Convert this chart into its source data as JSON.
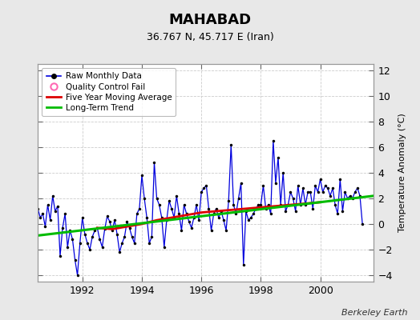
{
  "title": "MAHABAD",
  "subtitle": "36.767 N, 45.717 E (Iran)",
  "credit": "Berkeley Earth",
  "ylabel": "Temperature Anomaly (°C)",
  "xlim": [
    1990.5,
    2001.8
  ],
  "ylim": [
    -4.5,
    12.5
  ],
  "yticks": [
    -4,
    -2,
    0,
    2,
    4,
    6,
    8,
    10,
    12
  ],
  "xticks": [
    1992,
    1994,
    1996,
    1998,
    2000
  ],
  "fig_bg_color": "#e8e8e8",
  "plot_bg_color": "#ffffff",
  "raw_color": "#0000dd",
  "moving_avg_color": "#dd0000",
  "trend_color": "#00bb00",
  "qc_fail_color": "#ff69b4",
  "raw_data_x": [
    1990.5,
    1990.583,
    1990.667,
    1990.75,
    1990.833,
    1990.917,
    1991.0,
    1991.083,
    1991.167,
    1991.25,
    1991.333,
    1991.417,
    1991.5,
    1991.583,
    1991.667,
    1991.75,
    1991.833,
    1991.917,
    1992.0,
    1992.083,
    1992.167,
    1992.25,
    1992.333,
    1992.417,
    1992.5,
    1992.583,
    1992.667,
    1992.75,
    1992.833,
    1992.917,
    1993.0,
    1993.083,
    1993.167,
    1993.25,
    1993.333,
    1993.417,
    1993.5,
    1993.583,
    1993.667,
    1993.75,
    1993.833,
    1993.917,
    1994.0,
    1994.083,
    1994.167,
    1994.25,
    1994.333,
    1994.417,
    1994.5,
    1994.583,
    1994.667,
    1994.75,
    1994.833,
    1994.917,
    1995.0,
    1995.083,
    1995.167,
    1995.25,
    1995.333,
    1995.417,
    1995.5,
    1995.583,
    1995.667,
    1995.75,
    1995.833,
    1995.917,
    1996.0,
    1996.083,
    1996.167,
    1996.25,
    1996.333,
    1996.417,
    1996.5,
    1996.583,
    1996.667,
    1996.75,
    1996.833,
    1996.917,
    1997.0,
    1997.083,
    1997.167,
    1997.25,
    1997.333,
    1997.417,
    1997.5,
    1997.583,
    1997.667,
    1997.75,
    1997.833,
    1997.917,
    1998.0,
    1998.083,
    1998.167,
    1998.25,
    1998.333,
    1998.417,
    1998.5,
    1998.583,
    1998.667,
    1998.75,
    1998.833,
    1998.917,
    1999.0,
    1999.083,
    1999.167,
    1999.25,
    1999.333,
    1999.417,
    1999.5,
    1999.583,
    1999.667,
    1999.75,
    1999.833,
    1999.917,
    2000.0,
    2000.083,
    2000.167,
    2000.25,
    2000.333,
    2000.417,
    2000.5,
    2000.583,
    2000.667,
    2000.75,
    2000.833,
    2000.917,
    2001.0,
    2001.083,
    2001.167,
    2001.25,
    2001.333,
    2001.417
  ],
  "raw_data_y": [
    1.2,
    0.5,
    0.8,
    -0.2,
    1.5,
    0.3,
    2.2,
    1.0,
    1.4,
    -2.5,
    -0.3,
    0.8,
    -1.8,
    -0.5,
    -1.2,
    -2.8,
    -4.0,
    -1.5,
    0.5,
    -0.8,
    -1.5,
    -2.0,
    -1.0,
    -0.5,
    -0.3,
    -1.2,
    -1.8,
    -0.4,
    0.6,
    0.2,
    -0.5,
    0.3,
    -0.8,
    -2.2,
    -1.5,
    -1.0,
    0.2,
    -0.3,
    -1.0,
    -1.5,
    0.8,
    1.2,
    3.8,
    2.0,
    0.5,
    -1.5,
    -1.0,
    4.8,
    2.0,
    1.5,
    0.5,
    -1.8,
    0.3,
    1.8,
    1.2,
    0.5,
    2.2,
    0.8,
    -0.5,
    1.5,
    0.8,
    0.2,
    -0.3,
    0.5,
    1.5,
    0.3,
    2.5,
    2.8,
    3.0,
    1.2,
    -0.5,
    0.8,
    1.2,
    0.5,
    1.0,
    0.3,
    -0.5,
    1.8,
    6.2,
    1.5,
    0.8,
    2.0,
    3.2,
    -3.2,
    1.0,
    0.3,
    0.5,
    0.8,
    1.2,
    1.5,
    1.5,
    3.0,
    1.2,
    1.5,
    0.8,
    6.5,
    3.2,
    5.2,
    1.5,
    4.0,
    1.0,
    1.5,
    2.5,
    2.0,
    1.0,
    3.0,
    1.5,
    2.8,
    1.5,
    2.5,
    2.5,
    1.2,
    3.0,
    2.5,
    3.5,
    2.5,
    3.0,
    2.8,
    2.2,
    2.8,
    1.5,
    0.8,
    3.5,
    1.0,
    2.5,
    2.0,
    2.2,
    2.0,
    2.5,
    2.8,
    2.2,
    0.0
  ],
  "moving_avg_x": [
    1992.5,
    1993.0,
    1993.5,
    1994.0,
    1994.5,
    1995.0,
    1995.5,
    1996.0,
    1996.5,
    1997.0,
    1997.5,
    1998.0,
    1998.5,
    1999.0,
    1999.5,
    2000.0
  ],
  "moving_avg_y": [
    -0.3,
    -0.4,
    -0.2,
    0.0,
    0.3,
    0.5,
    0.7,
    0.9,
    1.0,
    1.1,
    1.2,
    1.3,
    1.4,
    1.5,
    1.6,
    1.7
  ],
  "trend_x": [
    1990.5,
    2001.8
  ],
  "trend_y": [
    -0.9,
    2.2
  ]
}
